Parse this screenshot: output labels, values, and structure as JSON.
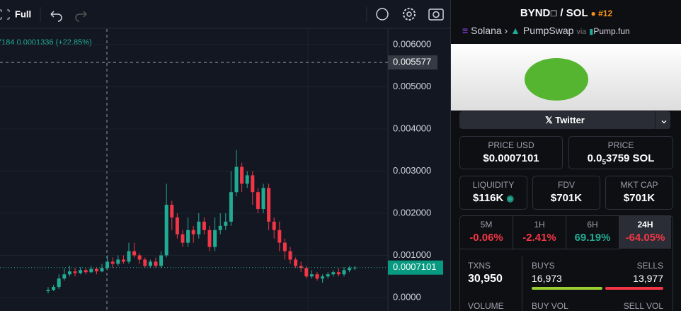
{
  "toolbar": {
    "mode": "Full"
  },
  "chart": {
    "type": "candlestick",
    "legend": "7184  0.0001336 (+22.85%)",
    "ylim": [
      -0.00032,
      0.00637
    ],
    "yticks": [
      {
        "value": 0,
        "label": "0.0000"
      },
      {
        "value": 0.001,
        "label": "0.001000"
      },
      {
        "value": 0.002,
        "label": "0.002000"
      },
      {
        "value": 0.003,
        "label": "0.003000"
      },
      {
        "value": 0.004,
        "label": "0.004000"
      },
      {
        "value": 0.005,
        "label": "0.005000"
      },
      {
        "value": 0.006,
        "label": "0.006000"
      }
    ],
    "crosshair": {
      "value": 0.005577,
      "label": "0.005577"
    },
    "last_price": {
      "value": 0.0007101,
      "label": "0.0007101"
    },
    "up_color": "#22ab94",
    "down_color": "#f23645",
    "candles": {
      "open": [
        0.00015,
        0.00018,
        0.00025,
        0.00045,
        0.00055,
        0.00062,
        0.00058,
        0.00065,
        0.0006,
        0.00068,
        0.00062,
        0.0007,
        0.00085,
        0.0008,
        0.0009,
        0.00085,
        0.0011,
        0.001,
        0.0009,
        0.00075,
        0.00085,
        0.00075,
        0.001,
        0.0022,
        0.0019,
        0.0015,
        0.0013,
        0.0016,
        0.0015,
        0.0018,
        0.0016,
        0.0012,
        0.0016,
        0.0017,
        0.0018,
        0.0025,
        0.0031,
        0.0027,
        0.0029,
        0.0025,
        0.0021,
        0.0026,
        0.0018,
        0.0016,
        0.0013,
        0.0011,
        0.0009,
        0.00075,
        0.0007,
        0.0005,
        0.00055,
        0.00045,
        0.0005,
        0.00055,
        0.0006,
        0.00055,
        0.00065,
        0.0007
      ],
      "high": [
        0.00025,
        0.0003,
        0.00055,
        0.0007,
        0.00075,
        0.0007,
        0.00072,
        0.0007,
        0.00075,
        0.00072,
        0.0008,
        0.001,
        0.00095,
        0.001,
        0.001,
        0.0013,
        0.0013,
        0.00105,
        0.00095,
        0.0009,
        0.00095,
        0.0011,
        0.0027,
        0.0023,
        0.002,
        0.0016,
        0.0019,
        0.0017,
        0.002,
        0.0019,
        0.0017,
        0.0019,
        0.002,
        0.002,
        0.003,
        0.0035,
        0.0032,
        0.003,
        0.003,
        0.0026,
        0.0027,
        0.0027,
        0.0019,
        0.0018,
        0.0014,
        0.0012,
        0.00095,
        0.00085,
        0.00075,
        0.00065,
        0.0006,
        0.00055,
        0.0006,
        0.00065,
        0.0007,
        0.00072,
        0.00075,
        0.00075
      ],
      "low": [
        0.0001,
        0.00015,
        0.0002,
        0.0004,
        0.0005,
        0.0005,
        0.00055,
        0.00055,
        0.00058,
        0.00055,
        0.0006,
        0.00065,
        0.0007,
        0.00075,
        0.0008,
        0.0008,
        0.00095,
        0.0008,
        0.0007,
        0.0007,
        0.0007,
        0.0007,
        0.00095,
        0.0016,
        0.0014,
        0.0012,
        0.0012,
        0.0013,
        0.0014,
        0.0015,
        0.0011,
        0.0011,
        0.0015,
        0.0016,
        0.0017,
        0.0024,
        0.0025,
        0.0026,
        0.0022,
        0.002,
        0.002,
        0.0016,
        0.0014,
        0.0011,
        0.0009,
        0.0008,
        0.0007,
        0.0006,
        0.00045,
        0.00045,
        0.0004,
        0.00035,
        0.00045,
        0.0005,
        0.0005,
        0.0005,
        0.0006,
        0.00065
      ],
      "close": [
        0.00018,
        0.00025,
        0.00045,
        0.00055,
        0.00062,
        0.00058,
        0.00065,
        0.0006,
        0.00068,
        0.00062,
        0.0007,
        0.00085,
        0.0008,
        0.0009,
        0.00085,
        0.0011,
        0.001,
        0.0009,
        0.00075,
        0.00085,
        0.00075,
        0.001,
        0.0022,
        0.0019,
        0.0015,
        0.0013,
        0.0016,
        0.0015,
        0.0018,
        0.0016,
        0.0012,
        0.0016,
        0.0017,
        0.0018,
        0.0025,
        0.0031,
        0.0027,
        0.0029,
        0.0025,
        0.0021,
        0.0026,
        0.0018,
        0.0016,
        0.0013,
        0.0011,
        0.0009,
        0.00075,
        0.0007,
        0.0005,
        0.00055,
        0.00045,
        0.0005,
        0.00055,
        0.0006,
        0.00055,
        0.00065,
        0.0007,
        0.00071
      ]
    }
  },
  "pair": {
    "base": "BYND",
    "separator": "/",
    "quote": "SOL",
    "rank": "#12",
    "chain": "Solana",
    "dex": "PumpSwap",
    "via": "via",
    "launchpad": "Pump.fun"
  },
  "social": {
    "label": "Twitter"
  },
  "stats": {
    "price_usd": {
      "label": "PRICE USD",
      "value": "$0.0007101"
    },
    "price_native": {
      "label": "PRICE",
      "prefix": "0.0",
      "zeros": "5",
      "digits": "3759 SOL"
    },
    "liquidity": {
      "label": "LIQUIDITY",
      "value": "$116K"
    },
    "fdv": {
      "label": "FDV",
      "value": "$701K"
    },
    "mkt_cap": {
      "label": "MKT CAP",
      "value": "$701K"
    }
  },
  "timeframes": [
    {
      "label": "5M",
      "value": "-0.06%"
    },
    {
      "label": "1H",
      "value": "-2.41%"
    },
    {
      "label": "6H",
      "value": "69.19%"
    },
    {
      "label": "24H",
      "value": "-64.05%"
    }
  ],
  "txns": {
    "label": "TXNS",
    "value": "30,950",
    "buys_label": "BUYS",
    "buys": "16,973",
    "sells_label": "SELLS",
    "sells": "13,977",
    "volume_label": "VOLUME",
    "buy_vol_label": "BUY VOL",
    "sell_vol_label": "SELL VOL"
  }
}
